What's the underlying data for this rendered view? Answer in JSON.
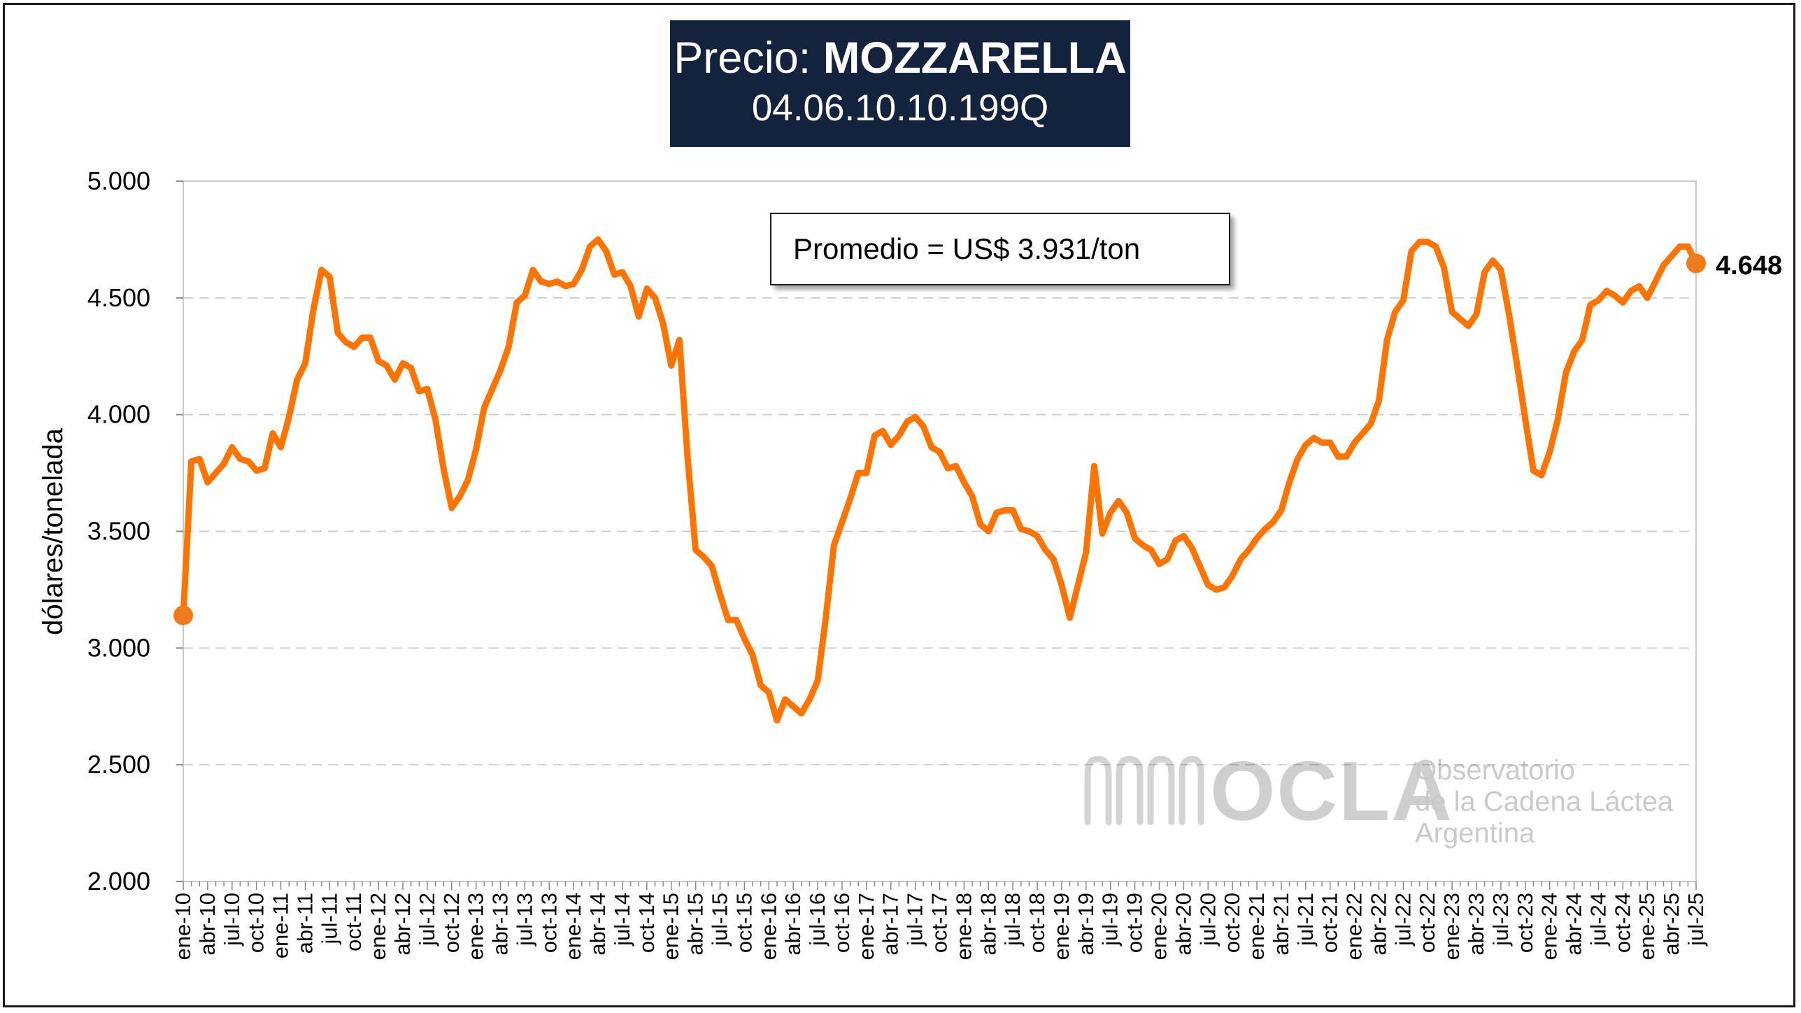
{
  "header": {
    "title_prefix": "Precio:",
    "title_product": "MOZZARELLA",
    "subtitle": "04.06.10.10.199Q"
  },
  "annotation": {
    "average_text": "Promedio = US$ 3.931/ton"
  },
  "watermark": {
    "acronym": "OCLA",
    "line1": "Observatorio",
    "line2": "de la Cadena Láctea",
    "line3": "Argentina"
  },
  "colors": {
    "line": "#ff7300",
    "marker": "#ef7b1c",
    "title_bg": "#13233e",
    "grid": "#cfcfcf"
  },
  "chart_data": {
    "type": "line",
    "title": "Precio: MOZZARELLA",
    "ylabel": "dólares/tonelada",
    "xlabel": "",
    "ylim": [
      2000,
      5000
    ],
    "yticks": [
      2000,
      2500,
      3000,
      3500,
      4000,
      4500,
      5000
    ],
    "ytick_labels": [
      "2.000",
      "2.500",
      "3.000",
      "3.500",
      "4.000",
      "4.500",
      "5.000"
    ],
    "grid": "horizontal dashed",
    "x_tick_labels": [
      "ene-10",
      "abr-10",
      "jul-10",
      "oct-10",
      "ene-11",
      "abr-11",
      "jul-11",
      "oct-11",
      "ene-12",
      "abr-12",
      "jul-12",
      "oct-12",
      "ene-13",
      "abr-13",
      "jul-13",
      "oct-13",
      "ene-14",
      "abr-14",
      "jul-14",
      "oct-14",
      "ene-15",
      "abr-15",
      "jul-15",
      "oct-15",
      "ene-16",
      "abr-16",
      "jul-16",
      "oct-16",
      "ene-17",
      "abr-17",
      "jul-17",
      "oct-17",
      "ene-18",
      "abr-18",
      "jul-18",
      "oct-18",
      "ene-19",
      "abr-19",
      "jul-19",
      "oct-19",
      "ene-20",
      "abr-20",
      "jul-20",
      "oct-20",
      "ene-21",
      "abr-21",
      "jul-21",
      "oct-21",
      "ene-22",
      "abr-22",
      "jul-22",
      "oct-22",
      "ene-23",
      "abr-23",
      "jul-23",
      "oct-23",
      "ene-24",
      "abr-24",
      "jul-24",
      "oct-24",
      "ene-25",
      "abr-25",
      "jul-25"
    ],
    "start_month": "ene-10",
    "end_value_label": "4.648",
    "series": [
      {
        "name": "",
        "values": [
          3140,
          3800,
          3810,
          3710,
          3750,
          3790,
          3860,
          3810,
          3800,
          3760,
          3770,
          3920,
          3860,
          3990,
          4150,
          4220,
          4450,
          4620,
          4590,
          4350,
          4310,
          4290,
          4330,
          4330,
          4230,
          4210,
          4150,
          4220,
          4200,
          4100,
          4110,
          3980,
          3770,
          3600,
          3650,
          3720,
          3850,
          4030,
          4110,
          4190,
          4290,
          4480,
          4510,
          4620,
          4570,
          4560,
          4570,
          4550,
          4560,
          4620,
          4720,
          4750,
          4700,
          4600,
          4610,
          4550,
          4420,
          4540,
          4500,
          4390,
          4210,
          4320,
          3820,
          3420,
          3390,
          3350,
          3230,
          3120,
          3120,
          3040,
          2970,
          2840,
          2810,
          2690,
          2780,
          2750,
          2720,
          2780,
          2860,
          3130,
          3440,
          3540,
          3640,
          3750,
          3750,
          3910,
          3930,
          3870,
          3910,
          3970,
          3990,
          3950,
          3860,
          3840,
          3770,
          3780,
          3710,
          3650,
          3530,
          3500,
          3580,
          3590,
          3590,
          3510,
          3500,
          3480,
          3420,
          3380,
          3270,
          3130,
          3270,
          3410,
          3780,
          3490,
          3580,
          3630,
          3580,
          3470,
          3440,
          3420,
          3360,
          3380,
          3460,
          3480,
          3430,
          3350,
          3270,
          3250,
          3260,
          3310,
          3380,
          3420,
          3470,
          3510,
          3540,
          3590,
          3710,
          3810,
          3870,
          3900,
          3880,
          3880,
          3820,
          3820,
          3880,
          3920,
          3960,
          4060,
          4320,
          4440,
          4490,
          4700,
          4740,
          4740,
          4720,
          4630,
          4440,
          4410,
          4380,
          4430,
          4610,
          4660,
          4620,
          4430,
          4210,
          3980,
          3760,
          3740,
          3840,
          3980,
          4180,
          4270,
          4320,
          4470,
          4490,
          4530,
          4510,
          4480,
          4530,
          4550,
          4500,
          4570,
          4640,
          4680,
          4720,
          4720,
          4648
        ]
      }
    ],
    "last_point_value": 4648
  }
}
